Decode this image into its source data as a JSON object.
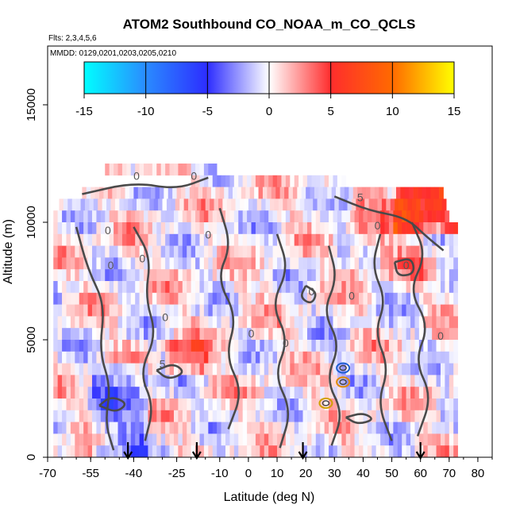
{
  "chart_data": {
    "type": "heatmap",
    "title": "ATOM2 Southbound CO_NOAA_m_CO_QCLS",
    "subtitle": "Flts: 2,3,4,5,6",
    "annotation": "MMDD: 0129,0201,0203,0205,0210",
    "xlabel": "Latitude (deg N)",
    "ylabel": "Altitude (m)",
    "xlim": [
      -70,
      85
    ],
    "ylim": [
      0,
      17500
    ],
    "x_ticks": [
      -70,
      -55,
      -40,
      -25,
      -10,
      0,
      10,
      20,
      30,
      40,
      50,
      60,
      70,
      80
    ],
    "x_tick_labels": [
      "-70",
      "-55",
      "-40",
      "-25",
      "-10",
      "0",
      "10",
      "20",
      "30",
      "40",
      "50",
      "60",
      "70",
      "80"
    ],
    "y_ticks": [
      0,
      5000,
      10000,
      15000
    ],
    "y_tick_labels": [
      "0",
      "5000",
      "10000",
      "15000"
    ],
    "colorbar": {
      "range": [
        -15,
        15
      ],
      "ticks": [
        -15,
        -10,
        -5,
        0,
        5,
        10,
        15
      ],
      "tick_labels": [
        "-15",
        "-10",
        "-5",
        "0",
        "5",
        "10",
        "15"
      ],
      "colors": [
        "#00ffff",
        "#2a8bff",
        "#2d2dff",
        "#ffffff",
        "#ff2d2d",
        "#ff6a00",
        "#ffff00"
      ]
    },
    "contour_labels": [
      {
        "text": "0",
        "x": -39,
        "y": 11800
      },
      {
        "text": "0",
        "x": -19,
        "y": 11800
      },
      {
        "text": "0",
        "x": -49,
        "y": 9500
      },
      {
        "text": "0",
        "x": -37,
        "y": 8300
      },
      {
        "text": "0",
        "x": -48,
        "y": 8000
      },
      {
        "text": "0",
        "x": -29,
        "y": 5800
      },
      {
        "text": "0",
        "x": -14,
        "y": 9300
      },
      {
        "text": "0",
        "x": 1,
        "y": 5100
      },
      {
        "text": "0",
        "x": 13,
        "y": 4700
      },
      {
        "text": "0",
        "x": 22,
        "y": 6900
      },
      {
        "text": "0",
        "x": 36,
        "y": 6700
      },
      {
        "text": "0",
        "x": 55,
        "y": 8000
      },
      {
        "text": "0",
        "x": 67,
        "y": 5000
      },
      {
        "text": "0",
        "x": 45,
        "y": 9700
      },
      {
        "text": "5",
        "x": 39,
        "y": 10900
      },
      {
        "text": "5",
        "x": -30,
        "y": 3800
      }
    ],
    "flight_arrows_latitude": [
      -42,
      -18,
      19,
      60
    ],
    "profile_rows": [
      {
        "alt": 12000,
        "lat_min": -50,
        "lat_max": -12
      },
      {
        "alt": 11500,
        "lat_min": -20,
        "lat_max": 33
      },
      {
        "alt": 11000,
        "lat_min": -58,
        "lat_max": 67
      },
      {
        "alt": 10500,
        "lat_min": -66,
        "lat_max": 68
      },
      {
        "alt": 10000,
        "lat_min": -68,
        "lat_max": 70
      },
      {
        "alt": 9500,
        "lat_min": -68,
        "lat_max": 72
      },
      {
        "alt": 9000,
        "lat_min": -68,
        "lat_max": 72
      },
      {
        "alt": 8500,
        "lat_min": -68,
        "lat_max": 72
      },
      {
        "alt": 8000,
        "lat_min": -68,
        "lat_max": 72
      },
      {
        "alt": 7500,
        "lat_min": -68,
        "lat_max": 72
      },
      {
        "alt": 7000,
        "lat_min": -68,
        "lat_max": 72
      },
      {
        "alt": 6500,
        "lat_min": -68,
        "lat_max": 72
      },
      {
        "alt": 6000,
        "lat_min": -68,
        "lat_max": 72
      },
      {
        "alt": 5500,
        "lat_min": -68,
        "lat_max": 72
      },
      {
        "alt": 5000,
        "lat_min": -68,
        "lat_max": 72
      },
      {
        "alt": 4500,
        "lat_min": -68,
        "lat_max": 72
      },
      {
        "alt": 4000,
        "lat_min": -68,
        "lat_max": 72
      },
      {
        "alt": 3500,
        "lat_min": -68,
        "lat_max": 72
      },
      {
        "alt": 3000,
        "lat_min": -68,
        "lat_max": 72
      },
      {
        "alt": 2500,
        "lat_min": -68,
        "lat_max": 72
      },
      {
        "alt": 2000,
        "lat_min": -68,
        "lat_max": 72
      },
      {
        "alt": 1500,
        "lat_min": -68,
        "lat_max": 72
      },
      {
        "alt": 1000,
        "lat_min": -68,
        "lat_max": 72
      },
      {
        "alt": 500,
        "lat_min": -68,
        "lat_max": 72
      },
      {
        "alt": 0,
        "lat_min": -68,
        "lat_max": 72
      }
    ]
  }
}
